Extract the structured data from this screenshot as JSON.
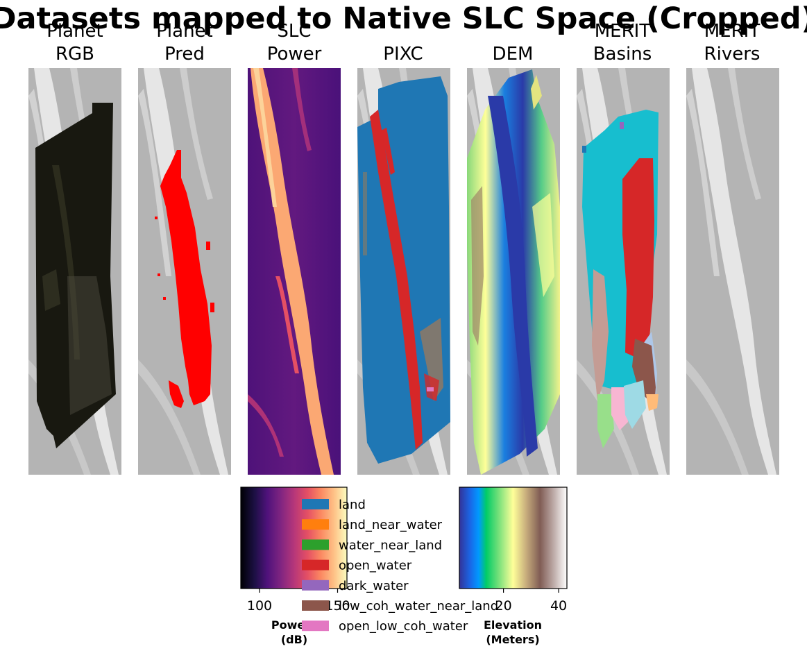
{
  "chart_data": {
    "type": "image-panels",
    "title": "Datasets mapped to Native SLC Space (Cropped)",
    "panels": [
      {
        "title_line1": "Planet",
        "title_line2": "RGB"
      },
      {
        "title_line1": "Planet",
        "title_line2": "Pred"
      },
      {
        "title_line1": "SLC",
        "title_line2": "Power"
      },
      {
        "title_line1": "",
        "title_line2": "PIXC"
      },
      {
        "title_line1": "",
        "title_line2": "DEM"
      },
      {
        "title_line1": "MERIT",
        "title_line2": "Basins"
      },
      {
        "title_line1": "MERIT",
        "title_line2": "Rivers"
      }
    ],
    "power_colorbar": {
      "colormap": "magma",
      "range": [
        88,
        156
      ],
      "ticks": [
        100,
        150
      ],
      "tick_labels": [
        "100",
        "150"
      ],
      "label_line1": "Power",
      "label_line2": "(dB)"
    },
    "elevation_colorbar": {
      "colormap": "terrain",
      "range": [
        4,
        43
      ],
      "ticks": [
        20,
        40
      ],
      "tick_labels": [
        "20",
        "40"
      ],
      "label_line1": "Elevation",
      "label_line2": "(Meters)"
    },
    "pixc_legend": [
      {
        "label": "land",
        "color": "#1f77b4"
      },
      {
        "label": "land_near_water",
        "color": "#ff7f0e"
      },
      {
        "label": "water_near_land",
        "color": "#2ca02c"
      },
      {
        "label": "open_water",
        "color": "#d62728"
      },
      {
        "label": "dark_water",
        "color": "#9467bd"
      },
      {
        "label": "low_coh_water_near_land",
        "color": "#8c564b"
      },
      {
        "label": "open_low_coh_water",
        "color": "#e377c2"
      }
    ],
    "colors": {
      "background_gray": "#b4b4b4",
      "river_light": "#ececec",
      "planet_pred_red": "#ff0000",
      "basin_cyan": "#17becf",
      "basin_red": "#d62728",
      "basin_brown": "#8c564b",
      "basin_pink": "#f7b6d2",
      "basin_lightblue": "#aec7e8",
      "basin_tan": "#c49c94",
      "basin_green": "#98df8a",
      "basin_orange": "#ffbb78",
      "basin_skyblue": "#9edae5"
    }
  }
}
